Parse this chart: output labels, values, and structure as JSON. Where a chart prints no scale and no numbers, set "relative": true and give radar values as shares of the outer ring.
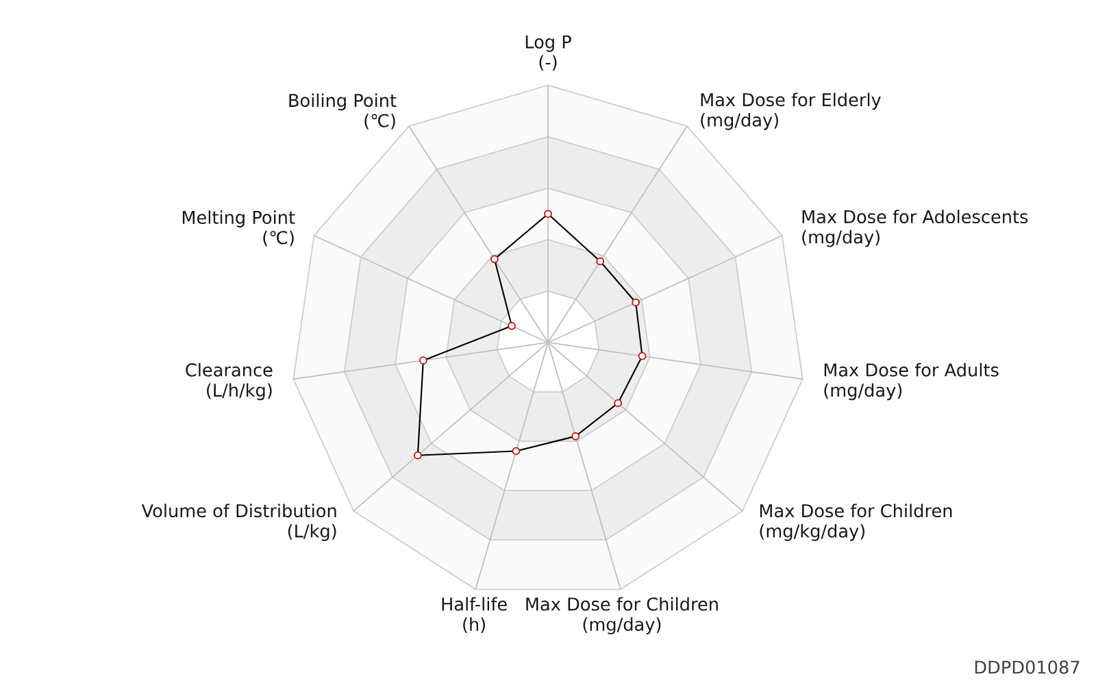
{
  "chart_data": {
    "type": "radar",
    "relative": true,
    "marker": "circle",
    "line_style": "solid",
    "categories": [
      "Log P (-)",
      "Max Dose for Elderly (mg/day)",
      "Max Dose for Adolescents (mg/day)",
      "Max Dose for Adults (mg/day)",
      "Max Dose for Children (mg/kg/day)",
      "Max Dose for Children (mg/day)",
      "Half-life (h)",
      "Volume of Distribution (L/kg)",
      "Clearance (L/h/kg)",
      "Melting Point (℃)",
      "Boiling Point (℃)"
    ],
    "series": [
      {
        "color": "#000000",
        "values": [
          0.5,
          0.375,
          0.375,
          0.37,
          0.36,
          0.38,
          0.44,
          0.67,
          0.49,
          0.155,
          0.385
        ]
      }
    ],
    "annotations": [
      "DDPD01087"
    ]
  }
}
